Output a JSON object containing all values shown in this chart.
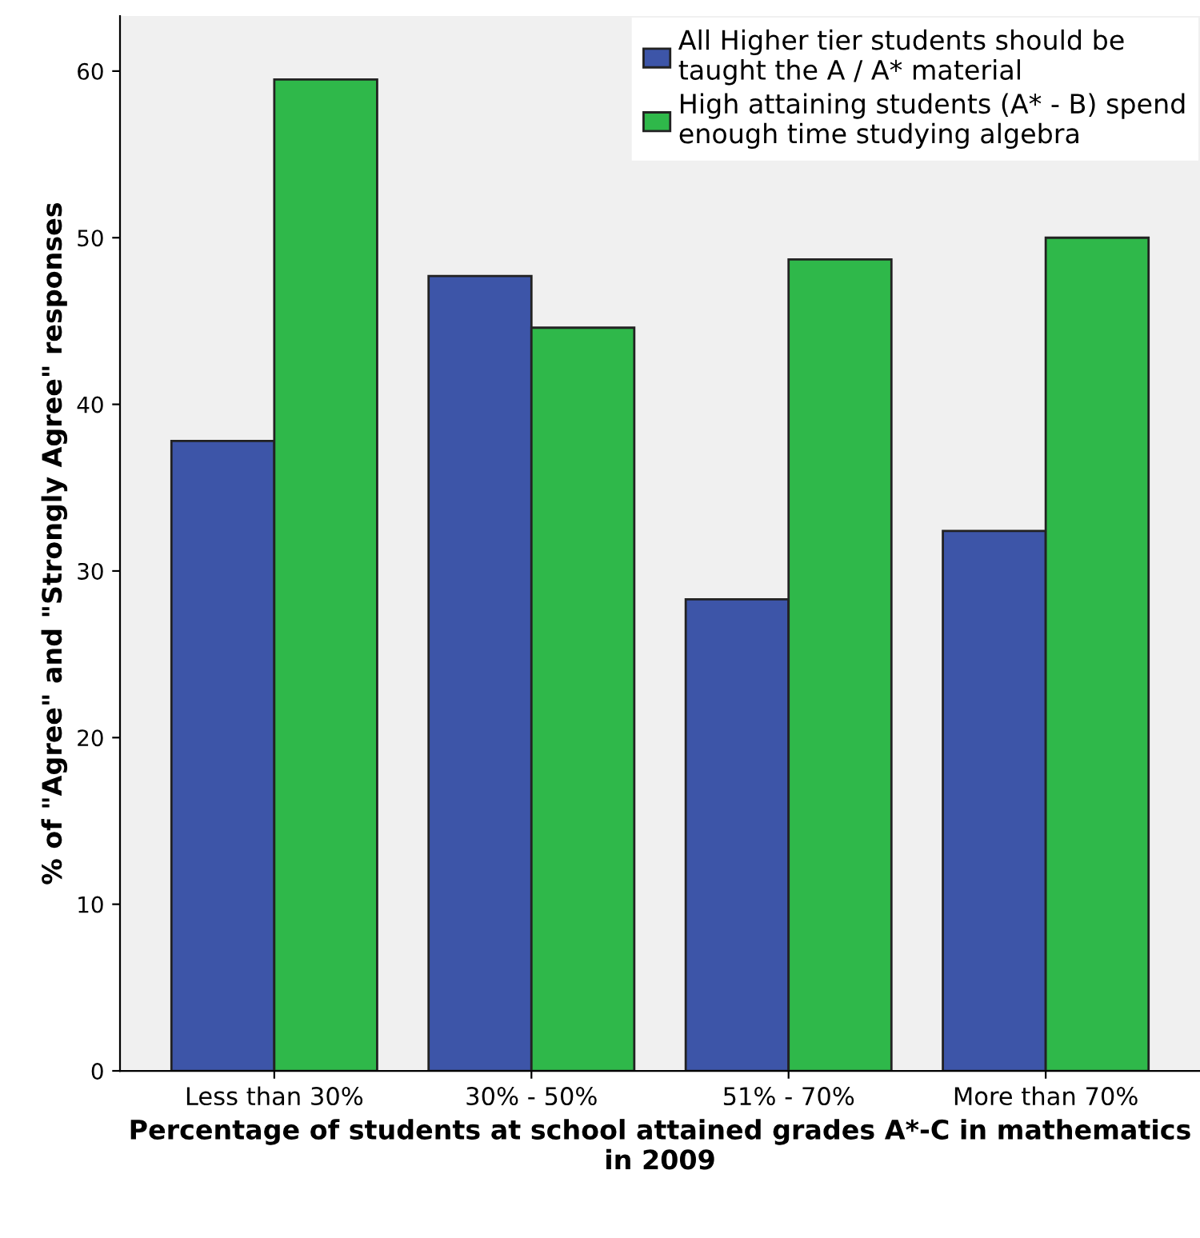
{
  "chart_data": {
    "type": "bar",
    "xlabel": "Percentage of students at school attained grades A*-C in mathematics in 2009",
    "ylabel": "% of \"Agree\" and \"Strongly Agree\" responses",
    "categories": [
      "Less than 30%",
      "30% - 50%",
      "51% - 70%",
      "More than 70%"
    ],
    "series": [
      {
        "name": "All Higher tier students should be\ntaught the A / A* material",
        "color": "#3d55a8",
        "values": [
          37.8,
          47.7,
          28.3,
          32.4
        ]
      },
      {
        "name": "High attaining students (A* - B) spend\nenough time studying algebra",
        "color": "#2fb84a",
        "values": [
          59.5,
          44.6,
          48.7,
          50.0
        ]
      }
    ],
    "ylim": [
      0,
      63.3
    ],
    "yticks": [
      0,
      10,
      20,
      30,
      40,
      50,
      60
    ],
    "grid": false,
    "legend": "top right"
  }
}
